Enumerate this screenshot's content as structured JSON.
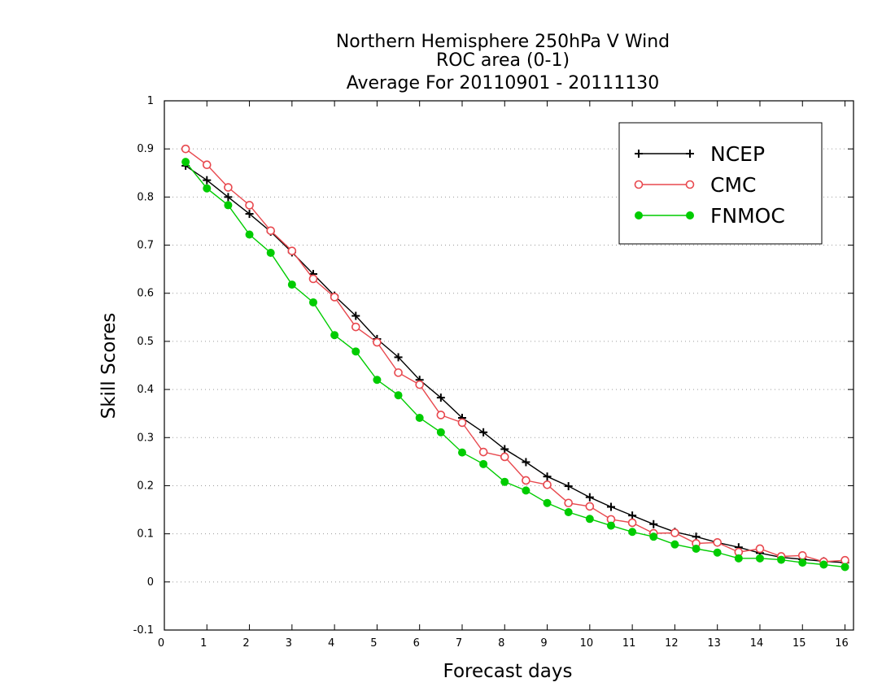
{
  "chart_data": {
    "type": "line",
    "title": [
      "Northern Hemisphere 250hPa V Wind",
      "ROC area (0-1)",
      "Average For 20110901 - 20111130"
    ],
    "xlabel": "Forecast days",
    "ylabel": "Skill Scores",
    "xlim": [
      0,
      16.2
    ],
    "ylim": [
      -0.1,
      1
    ],
    "xticks": [
      0,
      1,
      2,
      3,
      4,
      5,
      6,
      7,
      8,
      9,
      10,
      11,
      12,
      13,
      14,
      15,
      16
    ],
    "yticks": [
      -0.1,
      0,
      0.1,
      0.2,
      0.3,
      0.4,
      0.5,
      0.6,
      0.7,
      0.8,
      0.9,
      1
    ],
    "ytick_labels": [
      "-0.1",
      "0",
      "0.1",
      "0.2",
      "0.3",
      "0.4",
      "0.5",
      "0.6",
      "0.7",
      "0.8",
      "0.9",
      "1"
    ],
    "grid": "horizontal-dotted",
    "legend_position": "top-right",
    "x": [
      0.5,
      1,
      1.5,
      2,
      2.5,
      3,
      3.5,
      4,
      4.5,
      5,
      5.5,
      6,
      6.5,
      7,
      7.5,
      8,
      8.5,
      9,
      9.5,
      10,
      10.5,
      11,
      11.5,
      12,
      12.5,
      13,
      13.5,
      14,
      14.5,
      15,
      15.5,
      16
    ],
    "series": [
      {
        "name": "NCEP",
        "color": "#000000",
        "marker": "plus",
        "values": [
          0.865,
          0.835,
          0.8,
          0.765,
          0.728,
          0.685,
          0.64,
          0.595,
          0.553,
          0.505,
          0.467,
          0.42,
          0.383,
          0.341,
          0.311,
          0.276,
          0.249,
          0.219,
          0.199,
          0.176,
          0.156,
          0.138,
          0.12,
          0.104,
          0.094,
          0.082,
          0.072,
          0.06,
          0.051,
          0.047,
          0.043,
          0.04
        ]
      },
      {
        "name": "CMC",
        "color": "#e8484e",
        "marker": "open-circle",
        "values": [
          0.9,
          0.867,
          0.82,
          0.783,
          0.73,
          0.688,
          0.63,
          0.592,
          0.53,
          0.498,
          0.435,
          0.41,
          0.347,
          0.331,
          0.27,
          0.26,
          0.211,
          0.202,
          0.164,
          0.157,
          0.13,
          0.123,
          0.101,
          0.102,
          0.08,
          0.082,
          0.062,
          0.069,
          0.053,
          0.055,
          0.042,
          0.045
        ]
      },
      {
        "name": "FNMOC",
        "color": "#00cc00",
        "marker": "filled-circle",
        "values": [
          0.873,
          0.818,
          0.783,
          0.722,
          0.684,
          0.618,
          0.581,
          0.513,
          0.479,
          0.42,
          0.388,
          0.341,
          0.311,
          0.269,
          0.245,
          0.208,
          0.19,
          0.164,
          0.145,
          0.131,
          0.117,
          0.104,
          0.094,
          0.078,
          0.069,
          0.061,
          0.049,
          0.049,
          0.046,
          0.04,
          0.036,
          0.031
        ]
      }
    ]
  }
}
